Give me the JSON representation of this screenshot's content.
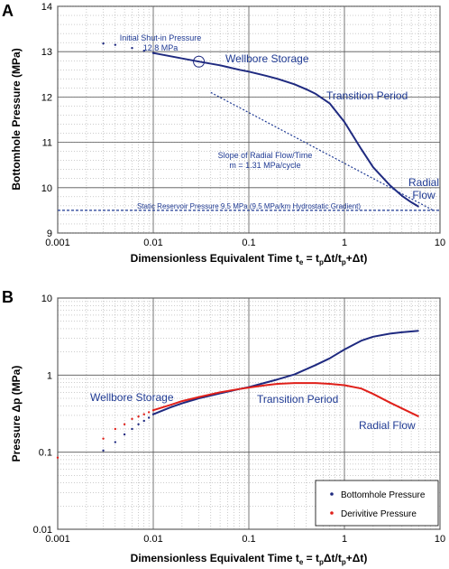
{
  "chart_data": [
    {
      "panel": "A",
      "type": "line",
      "xscale": "log",
      "xlim": [
        0.001,
        10
      ],
      "ylim": [
        9,
        14
      ],
      "x_ticks": [
        "0.001",
        "0.01",
        "0.1",
        "1",
        "10"
      ],
      "y_ticks": [
        "9",
        "10",
        "11",
        "12",
        "13",
        "14"
      ],
      "xlabel": "Dimensionless Equivalent Time t",
      "xlabel_sub": "e",
      "xlabel_rest": " = t",
      "xlabel_sub2": "p",
      "xlabel_rest2": "Δt/t",
      "xlabel_sub3": "p",
      "xlabel_rest3": "+Δt)",
      "ylabel": "Bottomhole Pressure (MPa)",
      "series": [
        {
          "color": "#1f2a80",
          "x": [
            0.003,
            0.004,
            0.006,
            0.008,
            0.01,
            0.015,
            0.02,
            0.03,
            0.05,
            0.08,
            0.1,
            0.15,
            0.2,
            0.3,
            0.4,
            0.5,
            0.7,
            1.0,
            1.5,
            2.0,
            3.0,
            4.0,
            5.0,
            6.0
          ],
          "y": [
            13.18,
            13.15,
            13.08,
            13.02,
            12.97,
            12.9,
            12.85,
            12.78,
            12.7,
            12.6,
            12.56,
            12.47,
            12.4,
            12.28,
            12.17,
            12.07,
            11.86,
            11.45,
            10.85,
            10.45,
            10.05,
            9.82,
            9.68,
            9.58
          ]
        }
      ],
      "radial_line": {
        "x": [
          0.04,
          8.5
        ],
        "y": [
          12.1,
          9.5
        ]
      },
      "static_line_y": 9.5,
      "shutin_point": {
        "x": 0.03,
        "y": 12.78
      },
      "annotations": {
        "shutin_1": "Initial Shut-in Pressure",
        "shutin_2": "12.8 MPa",
        "wellbore": "Wellbore Storage",
        "transition": "Transition Period",
        "slope_1": "Slope of Radial Flow/Time",
        "slope_2": "m = 1.31 MPa/cycle",
        "radial_1": "Radial",
        "radial_2": "Flow",
        "static": "Static Reservoir Pressure 9.5 MPa (9.5 MPa/km Hydrostatic Gradient)"
      }
    },
    {
      "panel": "B",
      "type": "line",
      "xscale": "log",
      "yscale": "log",
      "xlim": [
        0.001,
        10
      ],
      "ylim": [
        0.01,
        10
      ],
      "x_ticks": [
        "0.001",
        "0.01",
        "0.1",
        "1",
        "10"
      ],
      "y_ticks": [
        "0.01",
        "0.1",
        "1",
        "10"
      ],
      "ylabel": "Pressure Δp (MPa)",
      "series": [
        {
          "name": "Bottomhole Pressure",
          "color": "#1f2a80",
          "x": [
            0.003,
            0.004,
            0.005,
            0.006,
            0.007,
            0.008,
            0.009,
            0.01,
            0.015,
            0.02,
            0.03,
            0.05,
            0.08,
            0.1,
            0.15,
            0.2,
            0.3,
            0.5,
            0.7,
            1.0,
            1.5,
            2.0,
            3.0,
            4.0,
            6.0
          ],
          "y": [
            0.105,
            0.135,
            0.17,
            0.2,
            0.23,
            0.255,
            0.28,
            0.31,
            0.38,
            0.43,
            0.5,
            0.58,
            0.66,
            0.7,
            0.8,
            0.88,
            1.02,
            1.35,
            1.65,
            2.15,
            2.8,
            3.15,
            3.45,
            3.6,
            3.75
          ]
        },
        {
          "name": "Derivitive Pressure",
          "color": "#e0201a",
          "x": [
            0.001,
            0.003,
            0.004,
            0.005,
            0.006,
            0.007,
            0.008,
            0.009,
            0.01,
            0.015,
            0.02,
            0.03,
            0.05,
            0.08,
            0.1,
            0.15,
            0.2,
            0.3,
            0.5,
            0.7,
            1.0,
            1.5,
            2.0,
            3.0,
            4.0,
            6.0
          ],
          "y": [
            0.085,
            0.15,
            0.2,
            0.23,
            0.27,
            0.29,
            0.31,
            0.33,
            0.35,
            0.41,
            0.46,
            0.52,
            0.6,
            0.66,
            0.69,
            0.74,
            0.77,
            0.79,
            0.79,
            0.77,
            0.74,
            0.67,
            0.57,
            0.44,
            0.37,
            0.29
          ]
        }
      ],
      "annotations": {
        "wellbore": "Wellbore Storage",
        "transition": "Transition Period",
        "radial": "Radial Flow"
      },
      "legend_position": "bottom-right"
    }
  ]
}
